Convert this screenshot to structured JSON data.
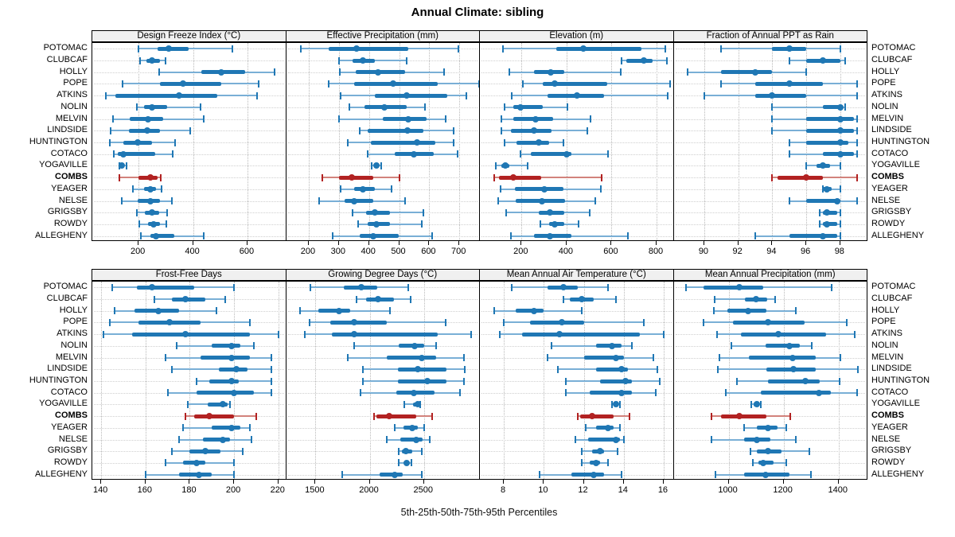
{
  "chart_data": {
    "type": "trellis-dotplot-percentiles",
    "title": "Annual Climate: sibling",
    "caption": "5th-25th-50th-75th-95th Percentiles",
    "percentiles": [
      5,
      25,
      50,
      75,
      95
    ],
    "legend_position": "none",
    "grid": true,
    "layout": {
      "rows": 2,
      "cols": 4
    },
    "stations": [
      "POTOMAC",
      "CLUBCAF",
      "HOLLY",
      "POPE",
      "ATKINS",
      "NOLIN",
      "MELVIN",
      "LINDSIDE",
      "HUNTINGTON",
      "COTACO",
      "YOGAVILLE",
      "COMBS",
      "YEAGER",
      "NELSE",
      "GRIGSBY",
      "ROWDY",
      "ALLEGHENY"
    ],
    "highlight_station": "COMBS",
    "colors": {
      "normal": "#1f77b4",
      "normal_light": "#79afd6",
      "highlight": "#b22222",
      "highlight_light": "#d2837c",
      "strip_bg": "#f0f0f0",
      "panel_border": "#000000",
      "gridline": "#b9b9b9",
      "row_guide": "#cfcfcf"
    },
    "panels": [
      {
        "title": "Design Freeze Index (°C)",
        "xlim": [
          30,
          742
        ],
        "ticks": [
          200,
          400,
          600
        ],
        "values": [
          [
            200,
            270,
            310,
            385,
            545
          ],
          [
            205,
            230,
            250,
            278,
            300
          ],
          [
            275,
            430,
            505,
            590,
            700
          ],
          [
            140,
            278,
            362,
            505,
            640
          ],
          [
            80,
            115,
            350,
            490,
            635
          ],
          [
            195,
            220,
            250,
            305,
            428
          ],
          [
            105,
            168,
            236,
            290,
            440
          ],
          [
            98,
            165,
            232,
            280,
            390
          ],
          [
            93,
            145,
            197,
            250,
            335
          ],
          [
            108,
            125,
            145,
            260,
            325
          ],
          [
            128,
            133,
            139,
            148,
            157
          ],
          [
            128,
            200,
            242,
            270,
            282
          ],
          [
            180,
            220,
            242,
            265,
            285
          ],
          [
            139,
            197,
            242,
            280,
            323
          ],
          [
            193,
            224,
            248,
            275,
            304
          ],
          [
            203,
            236,
            255,
            280,
            302
          ],
          [
            207,
            242,
            265,
            330,
            440
          ]
        ]
      },
      {
        "title": "Effective Precipitation (mm)",
        "xlim": [
          125,
          768
        ],
        "ticks": [
          200,
          300,
          400,
          500,
          600,
          700
        ],
        "values": [
          [
            175,
            265,
            360,
            530,
            698
          ],
          [
            300,
            345,
            380,
            420,
            525
          ],
          [
            302,
            357,
            430,
            520,
            650
          ],
          [
            267,
            352,
            481,
            628,
            765
          ],
          [
            305,
            420,
            525,
            660,
            724
          ],
          [
            335,
            385,
            450,
            525,
            585
          ],
          [
            300,
            445,
            530,
            590,
            655
          ],
          [
            370,
            395,
            528,
            580,
            680
          ],
          [
            330,
            405,
            560,
            620,
            680
          ],
          [
            395,
            485,
            550,
            615,
            695
          ],
          [
            410,
            418,
            425,
            432,
            440
          ],
          [
            245,
            300,
            343,
            415,
            500
          ],
          [
            305,
            350,
            380,
            420,
            475
          ],
          [
            235,
            320,
            352,
            415,
            520
          ],
          [
            345,
            390,
            420,
            470,
            580
          ],
          [
            365,
            395,
            425,
            470,
            575
          ],
          [
            280,
            370,
            413,
            500,
            610
          ]
        ]
      },
      {
        "title": "Elevation (m)",
        "xlim": [
          15,
          876
        ],
        "ticks": [
          200,
          400,
          600,
          800
        ],
        "values": [
          [
            118,
            354,
            473,
            734,
            838
          ],
          [
            645,
            667,
            742,
            784,
            845
          ],
          [
            145,
            255,
            330,
            390,
            640
          ],
          [
            205,
            293,
            348,
            582,
            860
          ],
          [
            158,
            317,
            445,
            565,
            850
          ],
          [
            123,
            162,
            197,
            293,
            403
          ],
          [
            111,
            165,
            263,
            340,
            508
          ],
          [
            111,
            153,
            255,
            333,
            491
          ],
          [
            123,
            177,
            275,
            321,
            387
          ],
          [
            195,
            240,
            400,
            420,
            585
          ],
          [
            85,
            110,
            127,
            146,
            228
          ],
          [
            78,
            100,
            165,
            286,
            555
          ],
          [
            107,
            170,
            301,
            387,
            554
          ],
          [
            95,
            173,
            290,
            395,
            526
          ],
          [
            130,
            278,
            325,
            391,
            503
          ],
          [
            282,
            321,
            348,
            391,
            453
          ],
          [
            153,
            255,
            325,
            422,
            671
          ]
        ]
      },
      {
        "title": "Fraction of Annual PPT as Rain",
        "xlim": [
          88.2,
          99.6
        ],
        "ticks": [
          90,
          92,
          94,
          96,
          98
        ],
        "values": [
          [
            91,
            94,
            95,
            96,
            98
          ],
          [
            95,
            96,
            97,
            98,
            98.3
          ],
          [
            89,
            91,
            93,
            94,
            96
          ],
          [
            91,
            93,
            95,
            97,
            99
          ],
          [
            90,
            93,
            94,
            96,
            99
          ],
          [
            94,
            97,
            98,
            98.1,
            98.3
          ],
          [
            94,
            96,
            98,
            98.8,
            99
          ],
          [
            94,
            96,
            98,
            98.8,
            99
          ],
          [
            95,
            96,
            98,
            98.5,
            99
          ],
          [
            95,
            97,
            98,
            98.8,
            99
          ],
          [
            96,
            96.6,
            97,
            97.4,
            98
          ],
          [
            94,
            94.3,
            96,
            97,
            99
          ],
          [
            97,
            97,
            97.2,
            97.5,
            98
          ],
          [
            95,
            96,
            97.8,
            98,
            99
          ],
          [
            96.8,
            97,
            97.2,
            97.8,
            98
          ],
          [
            96.8,
            97,
            97.2,
            97.8,
            98
          ],
          [
            93,
            95,
            97,
            97.8,
            98
          ]
        ]
      },
      {
        "title": "Frost-Free Days",
        "xlim": [
          136,
          223.5
        ],
        "ticks": [
          140,
          160,
          180,
          200,
          220
        ],
        "values": [
          [
            145,
            156,
            163,
            182,
            200
          ],
          [
            164,
            172,
            178,
            187,
            196
          ],
          [
            146,
            155,
            166,
            175,
            192
          ],
          [
            144,
            157,
            171,
            185,
            207
          ],
          [
            141,
            154,
            178,
            207,
            220
          ],
          [
            174,
            190,
            199,
            203,
            209
          ],
          [
            169,
            185,
            199,
            207,
            217
          ],
          [
            172,
            193,
            201,
            206,
            217
          ],
          [
            183,
            189,
            199,
            202,
            217
          ],
          [
            170,
            183,
            200,
            209,
            217
          ],
          [
            179,
            188,
            195,
            197,
            198
          ],
          [
            178,
            182,
            189,
            200,
            210
          ],
          [
            177,
            190,
            199,
            203,
            207
          ],
          [
            175,
            186,
            195,
            198,
            208
          ],
          [
            172,
            180,
            187,
            194,
            204
          ],
          [
            169,
            177,
            183,
            187,
            200
          ],
          [
            160,
            175,
            184,
            190,
            200
          ]
        ]
      },
      {
        "title": "Growing Degree Days (°C)",
        "xlim": [
          1230,
          3015
        ],
        "ticks": [
          1500,
          2000,
          2500
        ],
        "values": [
          [
            1455,
            1765,
            1920,
            2070,
            2355
          ],
          [
            1880,
            1965,
            2075,
            2225,
            2380
          ],
          [
            1360,
            1530,
            1715,
            1820,
            2185
          ],
          [
            1445,
            1640,
            1855,
            2160,
            2700
          ],
          [
            1405,
            1655,
            1860,
            2625,
            2935
          ],
          [
            1855,
            2265,
            2415,
            2500,
            2610
          ],
          [
            1795,
            2160,
            2478,
            2615,
            2870
          ],
          [
            1935,
            2258,
            2445,
            2705,
            2875
          ],
          [
            1940,
            2258,
            2530,
            2705,
            2870
          ],
          [
            1915,
            2245,
            2410,
            2600,
            2835
          ],
          [
            2315,
            2400,
            2440,
            2450,
            2465
          ],
          [
            2040,
            2065,
            2180,
            2430,
            2575
          ],
          [
            2230,
            2310,
            2390,
            2440,
            2500
          ],
          [
            2155,
            2285,
            2430,
            2490,
            2550
          ],
          [
            2270,
            2300,
            2330,
            2390,
            2480
          ],
          [
            2270,
            2315,
            2340,
            2365,
            2385
          ],
          [
            1746,
            2088,
            2227,
            2307,
            2478
          ]
        ]
      },
      {
        "title": "Mean Annual Air Temperature (°C)",
        "xlim": [
          6.8,
          16.5
        ],
        "ticks": [
          8,
          10,
          12,
          14,
          16
        ],
        "values": [
          [
            8.4,
            10.2,
            11.0,
            11.7,
            13.2
          ],
          [
            11.0,
            11.3,
            11.9,
            12.5,
            13.6
          ],
          [
            7.5,
            8.6,
            9.5,
            10.0,
            11.9
          ],
          [
            8.0,
            9.3,
            10.9,
            12.0,
            15.0
          ],
          [
            7.8,
            8.9,
            10.8,
            14.8,
            16.0
          ],
          [
            10.4,
            12.6,
            13.4,
            13.9,
            14.4
          ],
          [
            10.2,
            12.0,
            13.6,
            14.0,
            15.5
          ],
          [
            10.7,
            12.6,
            13.9,
            14.2,
            15.7
          ],
          [
            11.1,
            12.8,
            14.1,
            14.4,
            15.8
          ],
          [
            11.1,
            12.3,
            13.9,
            14.4,
            15.6
          ],
          [
            13.4,
            13.5,
            13.6,
            13.7,
            13.8
          ],
          [
            11.7,
            11.8,
            12.4,
            13.5,
            14.3
          ],
          [
            12.1,
            12.6,
            13.2,
            13.5,
            13.8
          ],
          [
            11.6,
            12.2,
            13.6,
            13.8,
            14.0
          ],
          [
            11.9,
            12.4,
            12.8,
            13.0,
            13.7
          ],
          [
            11.9,
            12.3,
            12.6,
            12.8,
            13.2
          ],
          [
            9.8,
            11.4,
            12.5,
            13.0,
            13.9
          ]
        ]
      },
      {
        "title": "Mean Annual Precipitation (mm)",
        "xlim": [
          800,
          1505
        ],
        "ticks": [
          1000,
          1200,
          1400
        ],
        "values": [
          [
            845,
            910,
            1040,
            1125,
            1375
          ],
          [
            950,
            1060,
            1100,
            1140,
            1170
          ],
          [
            947,
            996,
            1071,
            1137,
            1244
          ],
          [
            910,
            1015,
            1142,
            1276,
            1430
          ],
          [
            957,
            1045,
            1181,
            1354,
            1459
          ],
          [
            1010,
            1133,
            1220,
            1260,
            1302
          ],
          [
            967,
            1074,
            1234,
            1318,
            1406
          ],
          [
            961,
            1137,
            1237,
            1318,
            1471
          ],
          [
            1029,
            1142,
            1279,
            1332,
            1403
          ],
          [
            990,
            1117,
            1328,
            1371,
            1468
          ],
          [
            1081,
            1092,
            1103,
            1110,
            1117
          ],
          [
            938,
            971,
            1039,
            1137,
            1224
          ],
          [
            1055,
            1103,
            1142,
            1179,
            1211
          ],
          [
            938,
            1055,
            1103,
            1152,
            1244
          ],
          [
            1078,
            1103,
            1142,
            1191,
            1293
          ],
          [
            1088,
            1107,
            1127,
            1162,
            1211
          ],
          [
            951,
            1055,
            1133,
            1220,
            1299
          ]
        ]
      }
    ]
  }
}
